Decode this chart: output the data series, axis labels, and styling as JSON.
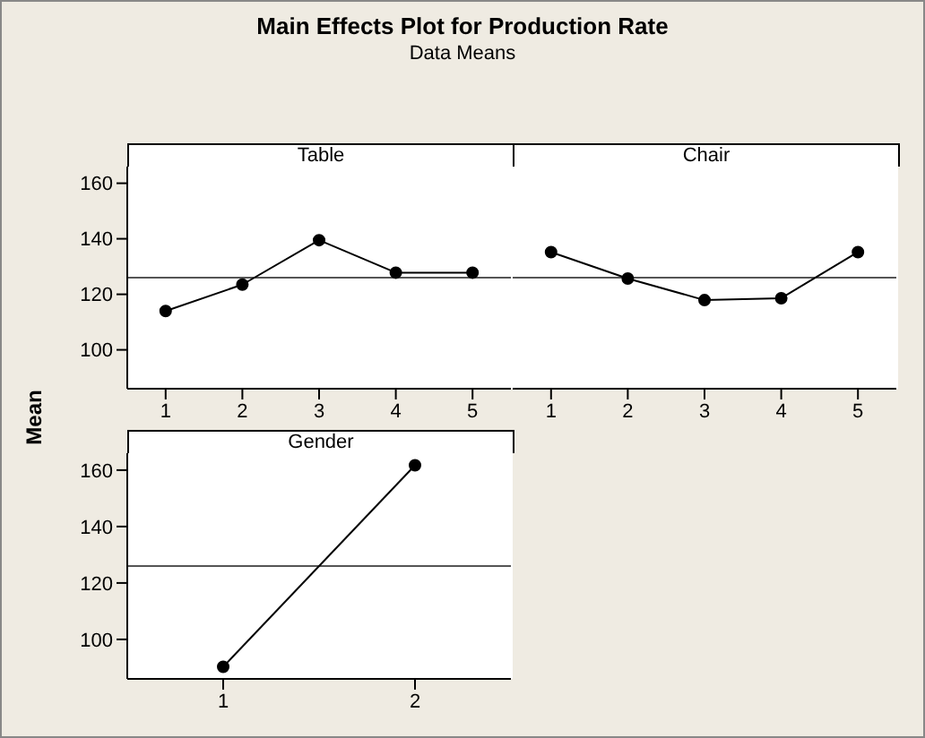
{
  "chart_data": [
    {
      "type": "line",
      "title": "Main Effects Plot for Production Rate",
      "subtitle": "Data Means",
      "ylabel": "Mean",
      "legend_title": "Table",
      "categories": [
        "1",
        "2",
        "3",
        "4",
        "5"
      ],
      "series": [
        {
          "color": "#000000",
          "values": [
            114,
            123.5,
            139.5,
            127.8,
            127.8
          ]
        }
      ],
      "ylim": [
        86,
        166
      ],
      "yticks": [
        100,
        120,
        140,
        160
      ],
      "ref_lines": [
        {
          "axis": "y",
          "value": 126,
          "color": "#555555"
        }
      ],
      "marker": "circle"
    },
    {
      "type": "line",
      "legend_title": "Chair",
      "categories": [
        "1",
        "2",
        "3",
        "4",
        "5"
      ],
      "series": [
        {
          "color": "#000000",
          "values": [
            135.2,
            125.7,
            117.9,
            118.6,
            135.2
          ]
        }
      ],
      "ylim": [
        86,
        166
      ],
      "yticks": [
        100,
        120,
        140,
        160
      ],
      "ref_lines": [
        {
          "axis": "y",
          "value": 126,
          "color": "#555555"
        }
      ],
      "marker": "circle",
      "tick_labels": "x"
    },
    {
      "type": "line",
      "legend_title": "Gender",
      "categories": [
        "1",
        "2"
      ],
      "series": [
        {
          "color": "#000000",
          "values": [
            90.3,
            161.7
          ]
        }
      ],
      "ylim": [
        86,
        166
      ],
      "yticks": [
        100,
        120,
        140,
        160
      ],
      "ref_lines": [
        {
          "axis": "y",
          "value": 126,
          "color": "#555555"
        }
      ],
      "marker": "circle"
    }
  ]
}
